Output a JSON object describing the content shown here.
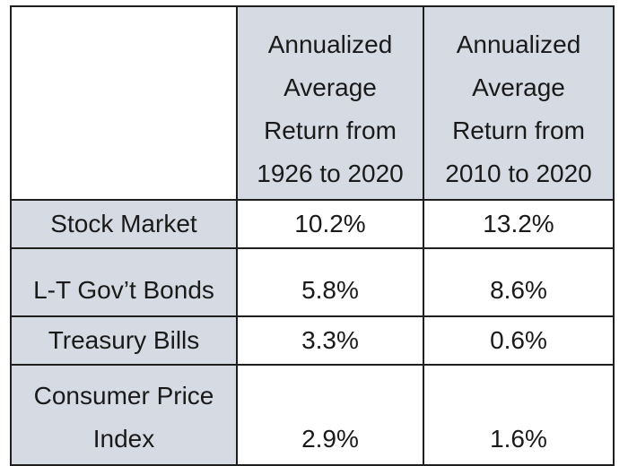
{
  "table": {
    "headers": {
      "col1": [
        "Annualized",
        "Average",
        "Return from",
        "1926 to 2020"
      ],
      "col2": [
        "Annualized",
        "Average",
        "Return from",
        "2010 to 2020"
      ]
    },
    "rows": [
      {
        "label": [
          "Stock Market"
        ],
        "v1": "10.2%",
        "v2": "13.2%"
      },
      {
        "label": [
          "L-T Gov’t Bonds"
        ],
        "v1": "5.8%",
        "v2": "8.6%"
      },
      {
        "label": [
          "Treasury Bills"
        ],
        "v1": "3.3%",
        "v2": "0.6%"
      },
      {
        "label": [
          "Consumer Price",
          "Index"
        ],
        "v1": "2.9%",
        "v2": "1.6%"
      }
    ]
  },
  "colors": {
    "header_fill": "#d6dae2",
    "border": "#1f1f1f"
  }
}
